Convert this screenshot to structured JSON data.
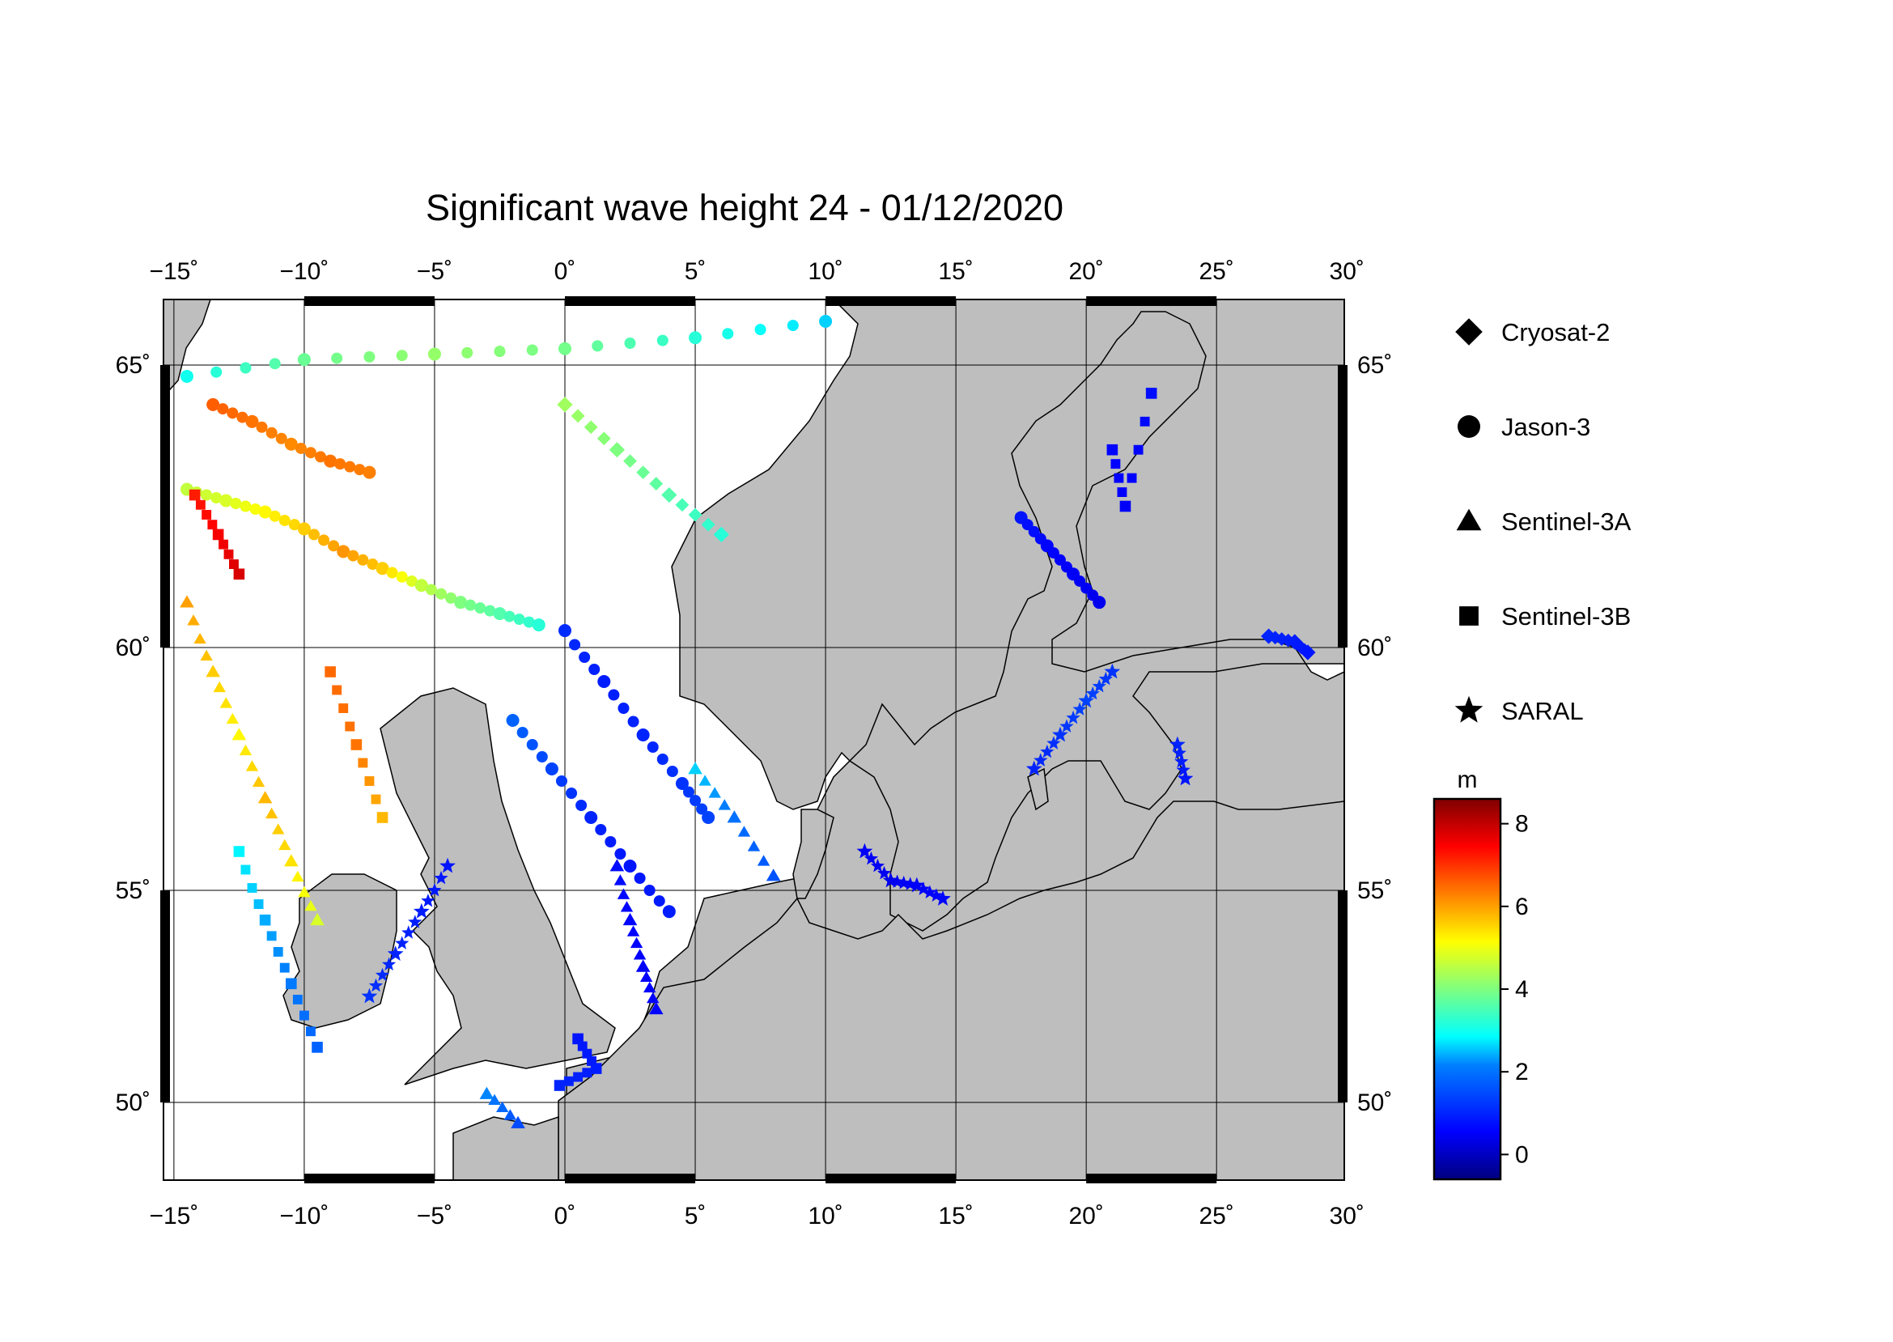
{
  "title": "Significant wave height 24 - 01/12/2020",
  "map": {
    "lon_range": [
      -15,
      30
    ],
    "lat_range": [
      48.5,
      66.2
    ],
    "lon_ticks": [
      -15,
      -10,
      -5,
      0,
      5,
      10,
      15,
      20,
      25,
      30
    ],
    "lat_ticks": [
      50,
      55,
      60,
      65
    ],
    "lon_labels": [
      "−15˚",
      "−10˚",
      "−5˚",
      "0˚",
      "5˚",
      "10˚",
      "15˚",
      "20˚",
      "25˚",
      "30˚"
    ],
    "lat_labels": [
      "50˚",
      "55˚",
      "60˚",
      "65˚"
    ],
    "land_color": "#bebebe",
    "sea_color": "#ffffff",
    "grid": true
  },
  "legend": {
    "items": [
      {
        "label": "Cryosat-2",
        "marker": "diamond"
      },
      {
        "label": "Jason-3",
        "marker": "circle"
      },
      {
        "label": "Sentinel-3A",
        "marker": "triangle"
      },
      {
        "label": "Sentinel-3B",
        "marker": "square"
      },
      {
        "label": "SARAL",
        "marker": "star"
      }
    ]
  },
  "colorbar": {
    "unit": "m",
    "min": -0.6,
    "max": 8.6,
    "ticks": [
      8,
      6,
      4,
      2,
      0
    ],
    "tick_labels": [
      "8",
      "6",
      "4",
      "2",
      "0"
    ],
    "colors": [
      "#00007f",
      "#0000ff",
      "#007fff",
      "#00ffff",
      "#7fff7f",
      "#ffff00",
      "#ff7f00",
      "#ff0000",
      "#7f0000"
    ]
  },
  "chart_data": {
    "type": "scatter",
    "variable": "significant wave height",
    "unit": "m",
    "tracks": [
      {
        "satellite": "Jason-3",
        "marker": "circle",
        "points": [
          [
            -14.5,
            62.8,
            4.6
          ],
          [
            -13,
            62.6,
            4.8
          ],
          [
            -11.5,
            62.4,
            5.2
          ],
          [
            -10,
            62.1,
            5.6
          ],
          [
            -8.5,
            61.7,
            6.1
          ],
          [
            -7,
            61.4,
            5.6
          ],
          [
            -5.5,
            61.1,
            4.6
          ],
          [
            -4,
            60.8,
            4.0
          ],
          [
            -2.5,
            60.6,
            3.6
          ],
          [
            -1,
            60.4,
            3.2
          ]
        ]
      },
      {
        "satellite": "Jason-3",
        "marker": "circle",
        "points": [
          [
            -13.5,
            64.3,
            6.6
          ],
          [
            -12,
            64,
            6.4
          ],
          [
            -10.5,
            63.6,
            6.2
          ],
          [
            -9,
            63.3,
            6.4
          ],
          [
            -7.5,
            63.1,
            6.3
          ]
        ]
      },
      {
        "satellite": "Jason-3",
        "marker": "circle",
        "points": [
          [
            0,
            60.3,
            1.1
          ],
          [
            1.5,
            59.3,
            0.9
          ],
          [
            3,
            58.2,
            1.0
          ],
          [
            4.5,
            57.2,
            1.2
          ],
          [
            5.5,
            56.5,
            1.4
          ]
        ]
      },
      {
        "satellite": "Jason-3",
        "marker": "circle",
        "points": [
          [
            -2,
            58.5,
            1.8
          ],
          [
            -0.5,
            57.5,
            1.4
          ],
          [
            1,
            56.5,
            1.0
          ],
          [
            2.5,
            55.5,
            0.8
          ],
          [
            4,
            54.5,
            0.9
          ]
        ]
      },
      {
        "satellite": "Jason-3",
        "marker": "circle",
        "points": [
          [
            17.5,
            62.3,
            0.8
          ],
          [
            18.5,
            61.8,
            0.6
          ],
          [
            19.5,
            61.3,
            0.5
          ],
          [
            20.5,
            60.8,
            0.4
          ]
        ]
      },
      {
        "satellite": "Jason-3",
        "marker": "circle",
        "points": [
          [
            -14.5,
            64.8,
            3.0
          ],
          [
            -10,
            65.1,
            3.8
          ],
          [
            -5,
            65.2,
            4.2
          ],
          [
            0,
            65.3,
            3.9
          ],
          [
            5,
            65.5,
            3.2
          ],
          [
            10,
            65.8,
            2.6
          ]
        ]
      },
      {
        "satellite": "Sentinel-3A",
        "marker": "triangle",
        "points": [
          [
            -14.5,
            60.8,
            6.0
          ],
          [
            -13.5,
            59.5,
            5.6
          ],
          [
            -12.5,
            58.2,
            5.2
          ],
          [
            -11.5,
            56.9,
            5.8
          ],
          [
            -10.5,
            55.6,
            5.4
          ],
          [
            -9.5,
            54.3,
            4.8
          ]
        ]
      },
      {
        "satellite": "Sentinel-3A",
        "marker": "triangle",
        "points": [
          [
            2,
            55.5,
            0.7
          ],
          [
            2.5,
            54.3,
            0.6
          ],
          [
            3,
            53.2,
            0.5
          ],
          [
            3.5,
            52.2,
            0.6
          ]
        ]
      },
      {
        "satellite": "Sentinel-3A",
        "marker": "triangle",
        "points": [
          [
            5,
            57.5,
            2.6
          ],
          [
            6.5,
            56.5,
            2.0
          ],
          [
            8,
            55.3,
            1.6
          ]
        ]
      },
      {
        "satellite": "Sentinel-3A",
        "marker": "triangle",
        "points": [
          [
            -3,
            50.2,
            2.2
          ],
          [
            -1.8,
            49.6,
            1.5
          ]
        ]
      },
      {
        "satellite": "Sentinel-3B",
        "marker": "square",
        "points": [
          [
            -14.2,
            62.7,
            7.2
          ],
          [
            -13.3,
            62.0,
            7.5
          ],
          [
            -12.5,
            61.3,
            7.8
          ]
        ]
      },
      {
        "satellite": "Sentinel-3B",
        "marker": "square",
        "points": [
          [
            -9,
            59.5,
            6.5
          ],
          [
            -8,
            58,
            6.4
          ],
          [
            -7,
            56.5,
            5.8
          ]
        ]
      },
      {
        "satellite": "Sentinel-3B",
        "marker": "square",
        "points": [
          [
            -12.5,
            55.8,
            2.8
          ],
          [
            -11.5,
            54.3,
            2.4
          ],
          [
            -10.5,
            52.8,
            2.1
          ],
          [
            -9.5,
            51.3,
            1.8
          ]
        ]
      },
      {
        "satellite": "Sentinel-3B",
        "marker": "square",
        "points": [
          [
            0.5,
            51.5,
            0.8
          ],
          [
            1.2,
            50.8,
            0.9
          ],
          [
            -0.2,
            50.4,
            1.0
          ]
        ]
      },
      {
        "satellite": "Sentinel-3B",
        "marker": "square",
        "points": [
          [
            21,
            63.5,
            0.6
          ],
          [
            21.5,
            62.5,
            0.5
          ],
          [
            22.5,
            64.5,
            0.7
          ]
        ]
      },
      {
        "satellite": "SARAL",
        "marker": "star",
        "points": [
          [
            -7.5,
            52.5,
            1.2
          ],
          [
            -6.5,
            53.5,
            1.0
          ],
          [
            -5.5,
            54.5,
            0.9
          ],
          [
            -4.5,
            55.5,
            0.8
          ]
        ]
      },
      {
        "satellite": "SARAL",
        "marker": "star",
        "points": [
          [
            11.5,
            55.8,
            0.5
          ],
          [
            12.5,
            55.2,
            0.4
          ],
          [
            13.5,
            55.1,
            0.5
          ],
          [
            14.5,
            54.8,
            0.6
          ]
        ]
      },
      {
        "satellite": "SARAL",
        "marker": "star",
        "points": [
          [
            18,
            57.5,
            1.0
          ],
          [
            19,
            58.2,
            1.2
          ],
          [
            20,
            58.9,
            1.4
          ],
          [
            21,
            59.5,
            1.2
          ]
        ]
      },
      {
        "satellite": "SARAL",
        "marker": "star",
        "points": [
          [
            23.5,
            58,
            1.0
          ],
          [
            23.8,
            57.3,
            0.8
          ]
        ]
      },
      {
        "satellite": "Cryosat-2",
        "marker": "diamond",
        "points": [
          [
            0,
            64.3,
            4.3
          ],
          [
            2,
            63.5,
            4.0
          ],
          [
            4,
            62.7,
            3.6
          ],
          [
            6,
            62,
            3.2
          ]
        ]
      },
      {
        "satellite": "Cryosat-2",
        "marker": "diamond",
        "points": [
          [
            27,
            60.2,
            1.0
          ],
          [
            28,
            60.1,
            0.9
          ],
          [
            28.5,
            59.9,
            0.8
          ]
        ]
      }
    ]
  }
}
